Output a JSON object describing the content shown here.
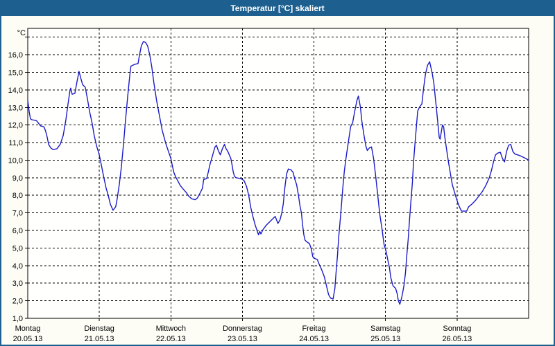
{
  "window": {
    "title": "Temperatur [°C] skaliert"
  },
  "colors": {
    "titlebar": "#1d6090",
    "window_border": "#1d6090",
    "window_background": "#fdfdf6",
    "plot_background": "#fffffd",
    "grid": "#000000",
    "axis": "#000000",
    "line": "#1a1ac8",
    "title_text": "#ffffff"
  },
  "chart_data": {
    "type": "line",
    "title": "Temperatur [°C] skaliert",
    "ylabel": "°C",
    "ylim": [
      1.0,
      17.5
    ],
    "x_range_hours": [
      0,
      168
    ],
    "grid": {
      "horizontal": "dashed",
      "vertical": "dashed-at-day-boundaries",
      "legend": "none"
    },
    "y_ticks": [
      {
        "value": 1,
        "label": "1,0"
      },
      {
        "value": 2,
        "label": "2,0"
      },
      {
        "value": 3,
        "label": "3,0"
      },
      {
        "value": 4,
        "label": "4,0"
      },
      {
        "value": 5,
        "label": "5,0"
      },
      {
        "value": 6,
        "label": "6,0"
      },
      {
        "value": 7,
        "label": "7,0"
      },
      {
        "value": 8,
        "label": "8,0"
      },
      {
        "value": 9,
        "label": "9,0"
      },
      {
        "value": 10,
        "label": "10,0"
      },
      {
        "value": 11,
        "label": "11,0"
      },
      {
        "value": 12,
        "label": "12,0"
      },
      {
        "value": 13,
        "label": "13,0"
      },
      {
        "value": 14,
        "label": "14,0"
      },
      {
        "value": 15,
        "label": "15,0"
      },
      {
        "value": 16,
        "label": "16,0"
      },
      {
        "value": 17,
        "label": ""
      }
    ],
    "days": [
      {
        "name": "Montag",
        "date": "20.05.13",
        "start_hour": 0
      },
      {
        "name": "Dienstag",
        "date": "21.05.13",
        "start_hour": 24
      },
      {
        "name": "Mittwoch",
        "date": "22.05.13",
        "start_hour": 48
      },
      {
        "name": "Donnerstag",
        "date": "23.05.13",
        "start_hour": 72
      },
      {
        "name": "Freitag",
        "date": "24.05.13",
        "start_hour": 96
      },
      {
        "name": "Samstag",
        "date": "25.05.13",
        "start_hour": 120
      },
      {
        "name": "Sonntag",
        "date": "26.05.13",
        "start_hour": 144
      }
    ],
    "series": [
      {
        "name": "Temperatur",
        "color": "#1a1ac8",
        "points": [
          [
            0,
            13.4
          ],
          [
            0.5,
            12.75
          ],
          [
            0.9,
            12.35
          ],
          [
            1.4,
            12.3
          ],
          [
            2.9,
            12.25
          ],
          [
            3.6,
            12.1
          ],
          [
            4.3,
            11.95
          ],
          [
            5.4,
            11.9
          ],
          [
            5.9,
            11.7
          ],
          [
            6.4,
            11.4
          ],
          [
            7,
            10.9
          ],
          [
            7.7,
            10.7
          ],
          [
            8.5,
            10.6
          ],
          [
            9.8,
            10.65
          ],
          [
            10.9,
            10.9
          ],
          [
            11.9,
            11.4
          ],
          [
            12.8,
            12.3
          ],
          [
            13.6,
            13.3
          ],
          [
            14.1,
            13.9
          ],
          [
            14.4,
            14.1
          ],
          [
            14.9,
            13.75
          ],
          [
            15.8,
            13.8
          ],
          [
            16.5,
            14.45
          ],
          [
            17.2,
            15.05
          ],
          [
            17.9,
            14.6
          ],
          [
            18.4,
            14.3
          ],
          [
            19.3,
            14.15
          ],
          [
            20,
            13.5
          ],
          [
            20.7,
            12.8
          ],
          [
            21.6,
            12.1
          ],
          [
            22.3,
            11.4
          ],
          [
            23.1,
            10.8
          ],
          [
            24,
            10.3
          ],
          [
            24.6,
            9.8
          ],
          [
            25.3,
            9.2
          ],
          [
            26.3,
            8.4
          ],
          [
            27,
            8.0
          ],
          [
            27.7,
            7.5
          ],
          [
            28.6,
            7.15
          ],
          [
            29.5,
            7.35
          ],
          [
            30,
            7.8
          ],
          [
            30.7,
            8.6
          ],
          [
            31.4,
            9.6
          ],
          [
            32.1,
            10.9
          ],
          [
            32.8,
            12.3
          ],
          [
            33.5,
            13.6
          ],
          [
            34.2,
            14.8
          ],
          [
            34.6,
            15.35
          ],
          [
            35.8,
            15.45
          ],
          [
            37,
            15.5
          ],
          [
            37.4,
            15.9
          ],
          [
            38.1,
            16.5
          ],
          [
            38.8,
            16.75
          ],
          [
            39.5,
            16.7
          ],
          [
            40.2,
            16.5
          ],
          [
            40.9,
            16.0
          ],
          [
            41.6,
            15.3
          ],
          [
            42.3,
            14.4
          ],
          [
            43.2,
            13.4
          ],
          [
            44.2,
            12.5
          ],
          [
            45.1,
            11.7
          ],
          [
            46.2,
            11.0
          ],
          [
            47.2,
            10.5
          ],
          [
            48,
            10.1
          ],
          [
            48.5,
            9.7
          ],
          [
            49,
            9.3
          ],
          [
            49.6,
            9.05
          ],
          [
            50.4,
            8.8
          ],
          [
            51.2,
            8.55
          ],
          [
            52.2,
            8.35
          ],
          [
            53.2,
            8.15
          ],
          [
            54,
            7.95
          ],
          [
            55,
            7.8
          ],
          [
            56.2,
            7.75
          ],
          [
            56.9,
            7.85
          ],
          [
            57.4,
            8.0
          ],
          [
            58,
            8.2
          ],
          [
            58.6,
            8.4
          ],
          [
            59,
            8.9
          ],
          [
            60,
            8.95
          ],
          [
            60.6,
            9.35
          ],
          [
            61.1,
            9.75
          ],
          [
            61.8,
            10.15
          ],
          [
            62.3,
            10.45
          ],
          [
            62.8,
            10.75
          ],
          [
            63.3,
            10.85
          ],
          [
            63.9,
            10.55
          ],
          [
            64.6,
            10.3
          ],
          [
            65.3,
            10.65
          ],
          [
            66,
            10.9
          ],
          [
            66.5,
            10.65
          ],
          [
            67.1,
            10.5
          ],
          [
            67.6,
            10.3
          ],
          [
            68.1,
            10.1
          ],
          [
            68.5,
            9.75
          ],
          [
            68.9,
            9.35
          ],
          [
            69.3,
            9.1
          ],
          [
            69.8,
            9.0
          ],
          [
            71.5,
            8.95
          ],
          [
            72.5,
            8.85
          ],
          [
            73.4,
            8.5
          ],
          [
            74.1,
            8.0
          ],
          [
            74.8,
            7.3
          ],
          [
            75.5,
            6.8
          ],
          [
            76.3,
            6.3
          ],
          [
            77,
            5.95
          ],
          [
            77.4,
            5.75
          ],
          [
            77.8,
            5.95
          ],
          [
            78.2,
            5.8
          ],
          [
            78.9,
            6.05
          ],
          [
            80,
            6.3
          ],
          [
            81.2,
            6.5
          ],
          [
            82.4,
            6.7
          ],
          [
            83,
            6.8
          ],
          [
            83.9,
            6.4
          ],
          [
            84.6,
            6.6
          ],
          [
            85.2,
            7.0
          ],
          [
            85.7,
            7.5
          ],
          [
            86.2,
            8.4
          ],
          [
            86.8,
            9.2
          ],
          [
            87.4,
            9.5
          ],
          [
            88.3,
            9.45
          ],
          [
            89,
            9.3
          ],
          [
            89.6,
            8.9
          ],
          [
            90.2,
            8.6
          ],
          [
            90.8,
            8.0
          ],
          [
            91.3,
            7.4
          ],
          [
            91.8,
            7.0
          ],
          [
            92.2,
            6.3
          ],
          [
            92.6,
            5.75
          ],
          [
            93,
            5.45
          ],
          [
            93.6,
            5.35
          ],
          [
            94.5,
            5.25
          ],
          [
            95.1,
            4.95
          ],
          [
            95.6,
            4.5
          ],
          [
            96.3,
            4.4
          ],
          [
            97.1,
            4.35
          ],
          [
            97.8,
            4.05
          ],
          [
            98.5,
            3.8
          ],
          [
            99.5,
            3.35
          ],
          [
            100.2,
            2.85
          ],
          [
            100.9,
            2.35
          ],
          [
            101.6,
            2.15
          ],
          [
            102.4,
            2.1
          ],
          [
            103,
            2.7
          ],
          [
            103.4,
            3.6
          ],
          [
            103.9,
            4.6
          ],
          [
            104.3,
            5.6
          ],
          [
            104.8,
            6.6
          ],
          [
            105.3,
            7.6
          ],
          [
            105.7,
            8.5
          ],
          [
            106.2,
            9.4
          ],
          [
            106.9,
            10.3
          ],
          [
            107.6,
            11.1
          ],
          [
            108.3,
            11.9
          ],
          [
            109,
            12.15
          ],
          [
            109.7,
            12.8
          ],
          [
            110.4,
            13.4
          ],
          [
            110.9,
            13.65
          ],
          [
            111.6,
            13.0
          ],
          [
            112,
            12.3
          ],
          [
            112.7,
            11.5
          ],
          [
            113.4,
            10.8
          ],
          [
            113.9,
            10.55
          ],
          [
            114.6,
            10.7
          ],
          [
            115.3,
            10.75
          ],
          [
            116,
            10.1
          ],
          [
            116.7,
            9.1
          ],
          [
            117.4,
            8.0
          ],
          [
            118.1,
            6.9
          ],
          [
            118.8,
            6.1
          ],
          [
            119.5,
            5.2
          ],
          [
            120.2,
            4.8
          ],
          [
            120.9,
            4.2
          ],
          [
            121.3,
            3.9
          ],
          [
            121.8,
            3.3
          ],
          [
            122.5,
            2.85
          ],
          [
            123.4,
            2.7
          ],
          [
            123.9,
            2.4
          ],
          [
            124.3,
            2.0
          ],
          [
            124.8,
            1.8
          ],
          [
            125.3,
            2.1
          ],
          [
            125.7,
            2.4
          ],
          [
            126.2,
            2.9
          ],
          [
            126.7,
            3.6
          ],
          [
            127.1,
            4.5
          ],
          [
            127.6,
            5.5
          ],
          [
            128,
            6.5
          ],
          [
            128.5,
            7.6
          ],
          [
            129,
            8.7
          ],
          [
            129.4,
            9.9
          ],
          [
            129.9,
            11.0
          ],
          [
            130.4,
            12.0
          ],
          [
            130.8,
            12.8
          ],
          [
            131.5,
            13.05
          ],
          [
            132.2,
            13.2
          ],
          [
            132.7,
            14.0
          ],
          [
            133.4,
            14.9
          ],
          [
            134.1,
            15.4
          ],
          [
            134.8,
            15.6
          ],
          [
            135.2,
            15.3
          ],
          [
            135.7,
            14.9
          ],
          [
            136.2,
            14.4
          ],
          [
            136.6,
            13.7
          ],
          [
            137.1,
            12.9
          ],
          [
            137.6,
            12.0
          ],
          [
            138,
            11.3
          ],
          [
            138.3,
            11.2
          ],
          [
            138.7,
            11.6
          ],
          [
            139.1,
            12.0
          ],
          [
            139.5,
            11.9
          ],
          [
            139.9,
            11.3
          ],
          [
            140.4,
            10.7
          ],
          [
            141.1,
            9.9
          ],
          [
            141.8,
            9.2
          ],
          [
            142.4,
            8.6
          ],
          [
            143.1,
            8.2
          ],
          [
            143.8,
            7.8
          ],
          [
            144.4,
            7.5
          ],
          [
            144.9,
            7.3
          ],
          [
            145.5,
            7.1
          ],
          [
            147.2,
            7.1
          ],
          [
            147.9,
            7.35
          ],
          [
            149,
            7.5
          ],
          [
            150.1,
            7.7
          ],
          [
            151.3,
            7.95
          ],
          [
            152.4,
            8.2
          ],
          [
            153.6,
            8.55
          ],
          [
            154.8,
            9.0
          ],
          [
            155.5,
            9.4
          ],
          [
            156.2,
            9.9
          ],
          [
            156.9,
            10.3
          ],
          [
            157.6,
            10.4
          ],
          [
            158.5,
            10.45
          ],
          [
            159.2,
            10.1
          ],
          [
            159.9,
            9.9
          ],
          [
            160.6,
            10.5
          ],
          [
            161.3,
            10.85
          ],
          [
            162,
            10.9
          ],
          [
            162.7,
            10.5
          ],
          [
            163.4,
            10.35
          ],
          [
            164.3,
            10.3
          ],
          [
            165.2,
            10.25
          ],
          [
            166.4,
            10.15
          ],
          [
            167.5,
            10.05
          ],
          [
            168,
            10.0
          ]
        ]
      }
    ]
  }
}
